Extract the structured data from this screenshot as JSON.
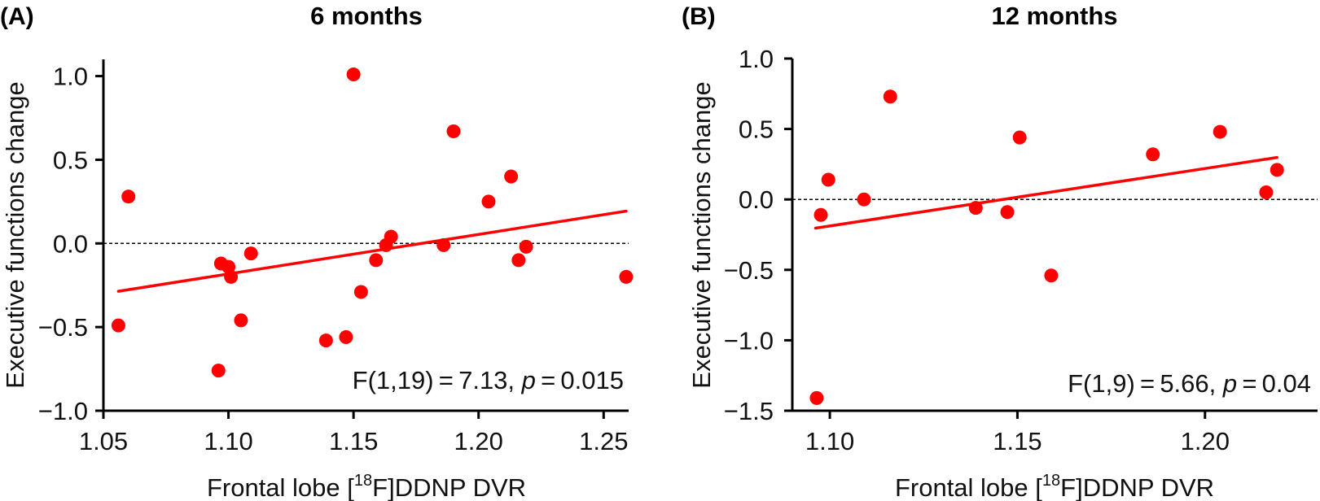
{
  "chart_data": [
    {
      "type": "scatter",
      "panel_label": "(A)",
      "title": "6 months",
      "xlabel": {
        "prefix": "Frontal lobe [",
        "superscript": "18",
        "suffix": "F]DDNP DVR"
      },
      "ylabel": "Executive functions change",
      "xlim": [
        1.05,
        1.26
      ],
      "ylim": [
        -1.0,
        1.1
      ],
      "xticks": [
        1.05,
        1.1,
        1.15,
        1.2,
        1.25
      ],
      "xtick_labels": [
        "1.05",
        "1.10",
        "1.15",
        "1.20",
        "1.25"
      ],
      "yticks": [
        1.0,
        0.5,
        0.0,
        -0.5,
        -1.0
      ],
      "ytick_labels": [
        "1.0",
        "0.5",
        "0.0",
        "−0.5",
        "−1.0"
      ],
      "reference_line_y": 0.0,
      "grid": false,
      "marker_color": "#ff0000",
      "fit_color": "#ff0000",
      "x": [
        1.056,
        1.06,
        1.096,
        1.097,
        1.1,
        1.101,
        1.105,
        1.109,
        1.139,
        1.147,
        1.15,
        1.153,
        1.159,
        1.163,
        1.165,
        1.186,
        1.19,
        1.204,
        1.213,
        1.216,
        1.219,
        1.259
      ],
      "y": [
        -0.49,
        0.28,
        -0.76,
        -0.12,
        -0.14,
        -0.2,
        -0.46,
        -0.06,
        -0.58,
        -0.56,
        1.01,
        -0.29,
        -0.1,
        -0.01,
        0.04,
        -0.01,
        0.67,
        0.25,
        0.4,
        -0.1,
        -0.02,
        -0.2
      ],
      "fit_line": {
        "x": [
          1.056,
          1.259
        ],
        "y": [
          -0.286,
          0.193
        ]
      },
      "annotation": {
        "prefix": "F(1,19) = 7.13, ",
        "p_symbol": "p",
        "suffix": " = 0.015"
      }
    },
    {
      "type": "scatter",
      "panel_label": "(B)",
      "title": "12 months",
      "xlabel": {
        "prefix": "Frontal lobe [",
        "superscript": "18",
        "suffix": "F]DDNP DVR"
      },
      "ylabel": "Executive functions change",
      "xlim": [
        1.09,
        1.23
      ],
      "ylim": [
        -1.5,
        1.0
      ],
      "xticks": [
        1.1,
        1.15,
        1.2
      ],
      "xtick_labels": [
        "1.10",
        "1.15",
        "1.20"
      ],
      "yticks": [
        1.0,
        0.5,
        0.0,
        -0.5,
        -1.0,
        -1.5
      ],
      "ytick_labels": [
        "1.0",
        "0.5",
        "0.0",
        "−0.5",
        "−1.0",
        "−1.5"
      ],
      "reference_line_y": 0.0,
      "grid": false,
      "marker_color": "#ff0000",
      "fit_color": "#ff0000",
      "x": [
        1.0965,
        1.0976,
        1.0996,
        1.1091,
        1.1161,
        1.1389,
        1.1473,
        1.1506,
        1.159,
        1.1861,
        1.204,
        1.2163,
        1.2192
      ],
      "y": [
        -1.41,
        -0.11,
        0.14,
        0.0,
        0.73,
        -0.06,
        -0.09,
        0.44,
        -0.54,
        0.32,
        0.48,
        0.05,
        0.21
      ],
      "fit_line": {
        "x": [
          1.0962,
          1.2192
        ],
        "y": [
          -0.204,
          0.298
        ]
      },
      "annotation": {
        "prefix": "F(1,9) = 5.66, ",
        "p_symbol": "p",
        "suffix": " = 0.04"
      }
    }
  ]
}
